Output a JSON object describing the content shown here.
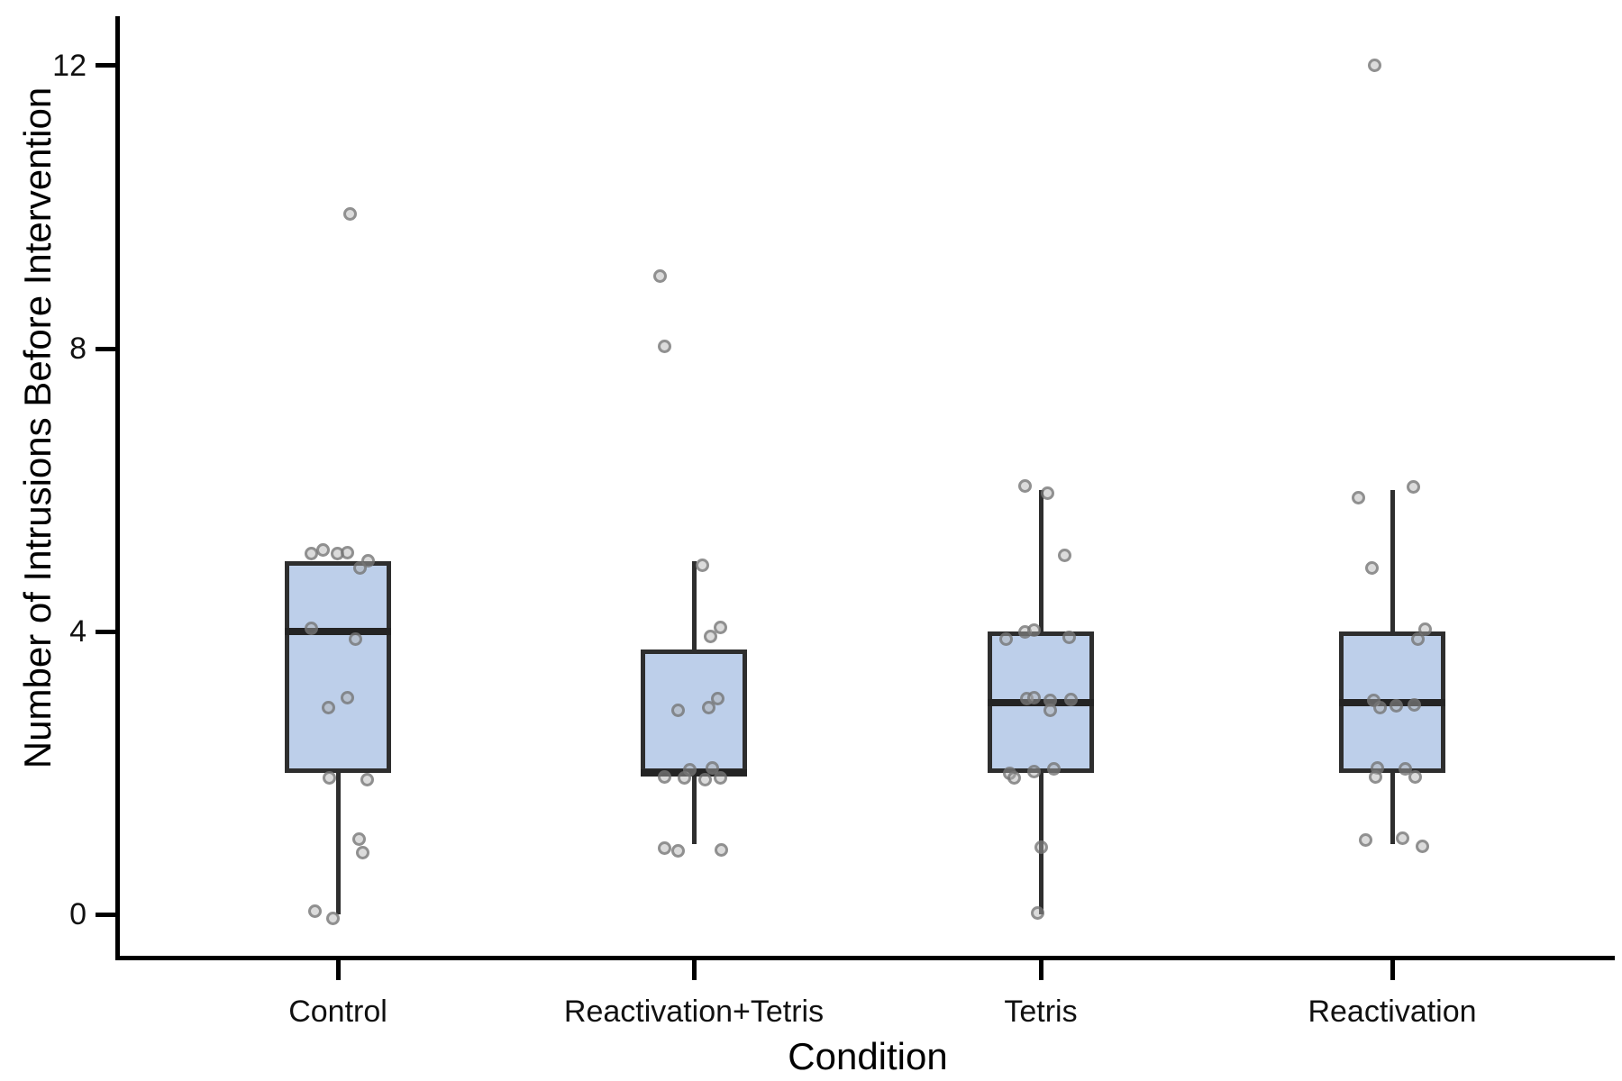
{
  "chart_data": {
    "type": "box",
    "title": "",
    "xlabel": "Condition",
    "ylabel": "Number of Intrusions Before Intervention",
    "ylim": [
      -0.58,
      12.7
    ],
    "yticks": [
      0,
      4,
      8,
      12
    ],
    "grid": false,
    "legend": "none",
    "box_fill": "#bdcfea",
    "box_border": "#2e2e2e",
    "point_color": "#6a6a6a",
    "categories": [
      "Control",
      "Reactivation+Tetris",
      "Tetris",
      "Reactivation"
    ],
    "series": [
      {
        "name": "Control",
        "q1": 2,
        "median": 4,
        "q3": 5,
        "whisker_low": 0,
        "whisker_high": 5,
        "points": [
          [
            13,
            9.9
          ],
          [
            -30,
            5.1
          ],
          [
            -17,
            5.15
          ],
          [
            -1,
            5.1
          ],
          [
            10,
            5.12
          ],
          [
            33,
            5.0
          ],
          [
            24,
            4.9
          ],
          [
            -30,
            4.05
          ],
          [
            19,
            3.9
          ],
          [
            -11,
            2.93
          ],
          [
            10,
            3.07
          ],
          [
            -10,
            1.93
          ],
          [
            32,
            1.91
          ],
          [
            23,
            1.07
          ],
          [
            27,
            0.88
          ],
          [
            -26,
            0.05
          ],
          [
            -6,
            -0.05
          ]
        ]
      },
      {
        "name": "Reactivation+Tetris",
        "q1": 2,
        "median": 2,
        "q3": 3.75,
        "whisker_low": 1,
        "whisker_high": 5,
        "points": [
          [
            -38,
            9.03
          ],
          [
            -33,
            8.03
          ],
          [
            9,
            4.94
          ],
          [
            18,
            3.94
          ],
          [
            29,
            4.06
          ],
          [
            -18,
            2.89
          ],
          [
            16,
            2.93
          ],
          [
            26,
            3.06
          ],
          [
            -33,
            1.95
          ],
          [
            -11,
            1.93
          ],
          [
            -5,
            2.05
          ],
          [
            12,
            1.91
          ],
          [
            20,
            2.07
          ],
          [
            29,
            1.93
          ],
          [
            -33,
            0.94
          ],
          [
            -18,
            0.9
          ],
          [
            30,
            0.91
          ]
        ]
      },
      {
        "name": "Tetris",
        "q1": 2,
        "median": 3,
        "q3": 4,
        "whisker_low": 0,
        "whisker_high": 6,
        "points": [
          [
            -18,
            6.06
          ],
          [
            7,
            5.96
          ],
          [
            26,
            5.08
          ],
          [
            -39,
            3.9
          ],
          [
            -18,
            4.0
          ],
          [
            -8,
            4.02
          ],
          [
            31,
            3.92
          ],
          [
            -16,
            3.05
          ],
          [
            -8,
            3.07
          ],
          [
            10,
            3.03
          ],
          [
            33,
            3.04
          ],
          [
            10,
            2.89
          ],
          [
            -35,
            2.0
          ],
          [
            -30,
            1.94
          ],
          [
            -8,
            2.03
          ],
          [
            14,
            2.06
          ],
          [
            0,
            0.96
          ],
          [
            -4,
            0.03
          ]
        ]
      },
      {
        "name": "Reactivation",
        "q1": 2,
        "median": 3,
        "q3": 4,
        "whisker_low": 1,
        "whisker_high": 6,
        "points": [
          [
            -20,
            12.0
          ],
          [
            -38,
            5.9
          ],
          [
            23,
            6.05
          ],
          [
            -23,
            4.9
          ],
          [
            36,
            4.03
          ],
          [
            28,
            3.9
          ],
          [
            -21,
            3.03
          ],
          [
            -14,
            2.93
          ],
          [
            4,
            2.95
          ],
          [
            24,
            2.97
          ],
          [
            -17,
            2.08
          ],
          [
            -19,
            1.95
          ],
          [
            14,
            2.06
          ],
          [
            25,
            1.95
          ],
          [
            -30,
            1.05
          ],
          [
            11,
            1.08
          ],
          [
            33,
            0.97
          ]
        ]
      }
    ]
  }
}
